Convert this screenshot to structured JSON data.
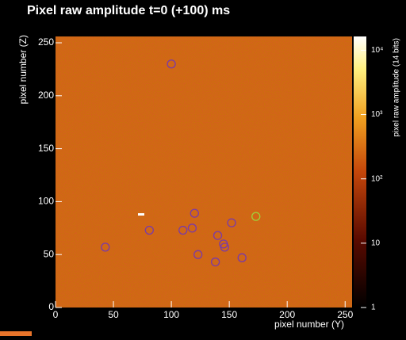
{
  "chart_data": {
    "type": "heatmap",
    "title": "Pixel raw amplitude t=0 (+100) ms",
    "x_label": "pixel number (Y)",
    "y_label": "pixel number (Z)",
    "colorbar_label": "pixel raw amplitude (14 bits)",
    "xlim": [
      0,
      256
    ],
    "ylim": [
      0,
      256
    ],
    "xticks": [
      0,
      50,
      100,
      150,
      200,
      250
    ],
    "yticks": [
      0,
      50,
      100,
      150,
      200,
      250
    ],
    "clim": [
      1,
      16384
    ],
    "log_color_scale": true,
    "cticks": [
      1,
      10,
      {
        "value": 100,
        "label": "10²"
      },
      {
        "value": 1000,
        "label": "10³"
      },
      {
        "value": 10000,
        "label": "10⁴"
      }
    ],
    "markers": {
      "x": [
        100,
        43,
        81,
        110,
        118,
        120,
        123,
        140,
        145,
        146,
        138,
        152,
        161,
        173
      ],
      "y": [
        230,
        57,
        73,
        73,
        75,
        89,
        50,
        68,
        60,
        57,
        43,
        80,
        47,
        86
      ],
      "colors": [
        "#7a3aa8",
        "#7a3aa8",
        "#7a3aa8",
        "#7a3aa8",
        "#7a3aa8",
        "#7a3aa8",
        "#7a3aa8",
        "#7a3aa8",
        "#7a3aa8",
        "#7a3aa8",
        "#7a3aa8",
        "#7a3aa8",
        "#7a3aa8",
        "#9fd33a"
      ]
    }
  }
}
